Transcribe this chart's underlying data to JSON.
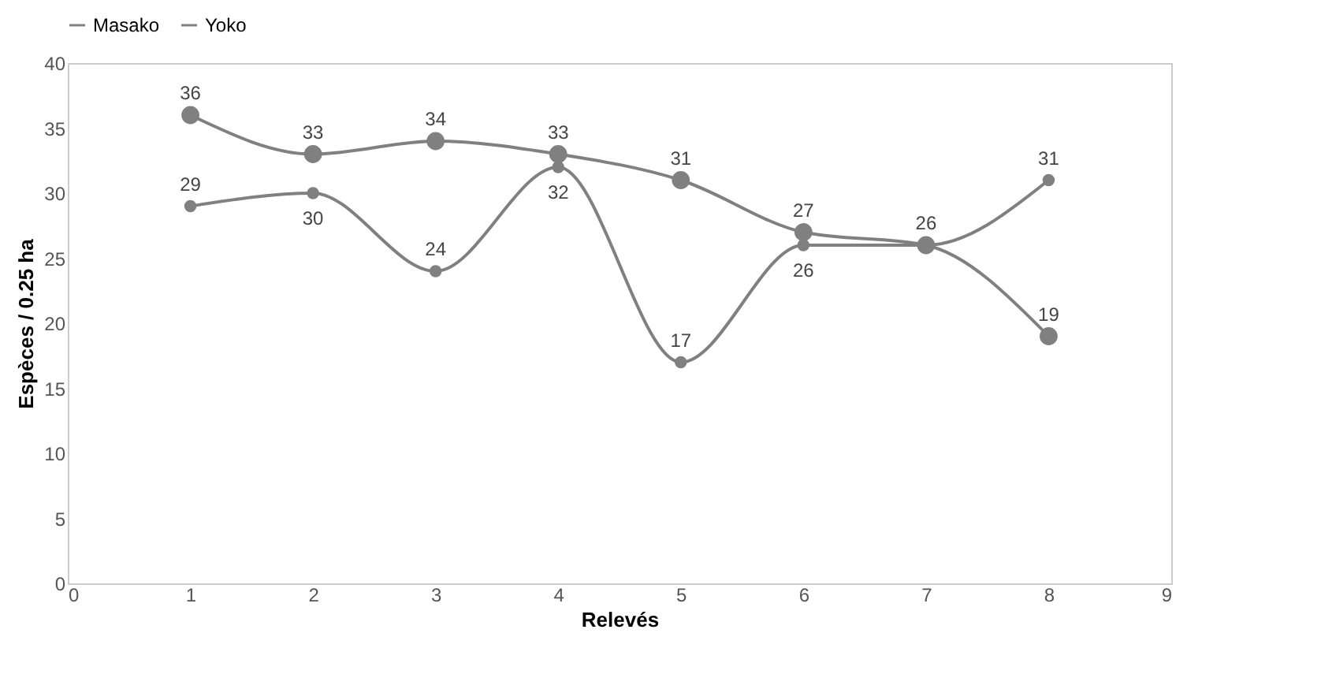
{
  "chart_data": {
    "type": "line",
    "xlabel": "Relevés",
    "ylabel": "Espèces / 0.25 ha",
    "x": [
      1,
      2,
      3,
      4,
      5,
      6,
      7,
      8
    ],
    "series": [
      {
        "name": "Masako",
        "color": "#808080",
        "values": [
          36,
          33,
          34,
          33,
          31,
          27,
          26,
          19
        ],
        "value_labels": [
          "36",
          "33",
          "34",
          "33",
          "31",
          "27",
          "26",
          "19"
        ]
      },
      {
        "name": "Yoko",
        "color": "#808080",
        "values": [
          29,
          30,
          24,
          32,
          17,
          26,
          26,
          31
        ],
        "value_labels": [
          "29",
          "30",
          "24",
          "32",
          "17",
          "26",
          null,
          "31"
        ]
      }
    ],
    "xlim": [
      0,
      9
    ],
    "xticks": [
      0,
      1,
      2,
      3,
      4,
      5,
      6,
      7,
      8,
      9
    ],
    "ylim": [
      0,
      40
    ],
    "yticks": [
      0,
      5,
      10,
      15,
      20,
      25,
      30,
      35,
      40
    ],
    "legend": "top",
    "marker": "circle",
    "grid": false
  }
}
